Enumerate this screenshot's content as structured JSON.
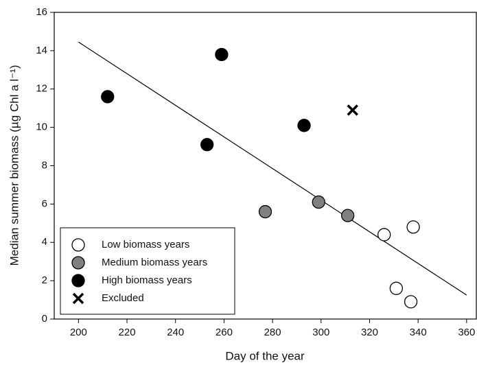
{
  "chart_data": {
    "type": "scatter",
    "xlabel": "Day of the year",
    "ylabel": "Median summer biomass (µg Chl a l⁻¹)",
    "xlim": [
      190,
      364
    ],
    "ylim": [
      0,
      16
    ],
    "xticks": [
      200,
      220,
      240,
      260,
      280,
      300,
      320,
      340,
      360
    ],
    "yticks": [
      0,
      2,
      4,
      6,
      8,
      10,
      12,
      14,
      16
    ],
    "legend": "lower left",
    "series": [
      {
        "name": "Low biomass years",
        "marker": "circle",
        "color": "#ffffff",
        "x": [
          326,
          338,
          331,
          337
        ],
        "y": [
          4.4,
          4.8,
          1.6,
          0.9
        ]
      },
      {
        "name": "Medium biomass years",
        "marker": "circle",
        "color": "#808080",
        "x": [
          277,
          299,
          311
        ],
        "y": [
          5.6,
          6.1,
          5.4
        ]
      },
      {
        "name": "High biomass years",
        "marker": "circle",
        "color": "#000000",
        "x": [
          212,
          253,
          259,
          293
        ],
        "y": [
          11.6,
          9.1,
          13.8,
          10.1
        ]
      },
      {
        "name": "Excluded",
        "marker": "x",
        "color": "#000000",
        "x": [
          313
        ],
        "y": [
          10.9
        ]
      }
    ],
    "trend_line": {
      "color": "#000000",
      "x": [
        200,
        360
      ],
      "y": [
        14.45,
        1.25
      ]
    }
  }
}
